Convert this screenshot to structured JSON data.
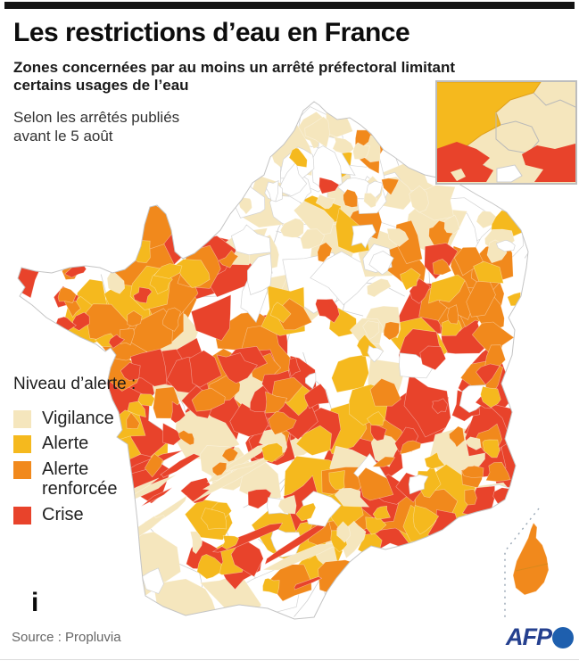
{
  "header": {
    "title": "Les restrictions d’eau en France",
    "subtitle": "Zones concernées par au moins un arrêté préfectoral limitant certains usages de l’eau",
    "note": {
      "line1": "Selon les arrêtés publiés",
      "line2": "avant le 5 août"
    }
  },
  "legend": {
    "title": "Niveau d’alerte :",
    "items": [
      {
        "label": "Vigilance",
        "key": "vigilance"
      },
      {
        "label": "Alerte",
        "key": "alerte"
      },
      {
        "label": "Alerte renforcée",
        "key": "alerte_renforcee"
      },
      {
        "label": "Crise",
        "key": "crise"
      }
    ]
  },
  "footer": {
    "info_glyph": "i",
    "source": "Source : Propluvia",
    "afp_label": "AFP"
  },
  "colors": {
    "top_bar": "#141414",
    "vigilance": "#f5e6bd",
    "alerte": "#f5b91e",
    "alerte_renforcee": "#f1891c",
    "crise": "#e8432b",
    "no_restriction": "#ffffff",
    "department_border": "#cfcfcf",
    "outline": "#c4c4c4",
    "inset_border": "#bdbdbd",
    "sea_dash": "#98a6b4",
    "afp_text": "#25408f",
    "afp_globe": "#1e5fae"
  }
}
